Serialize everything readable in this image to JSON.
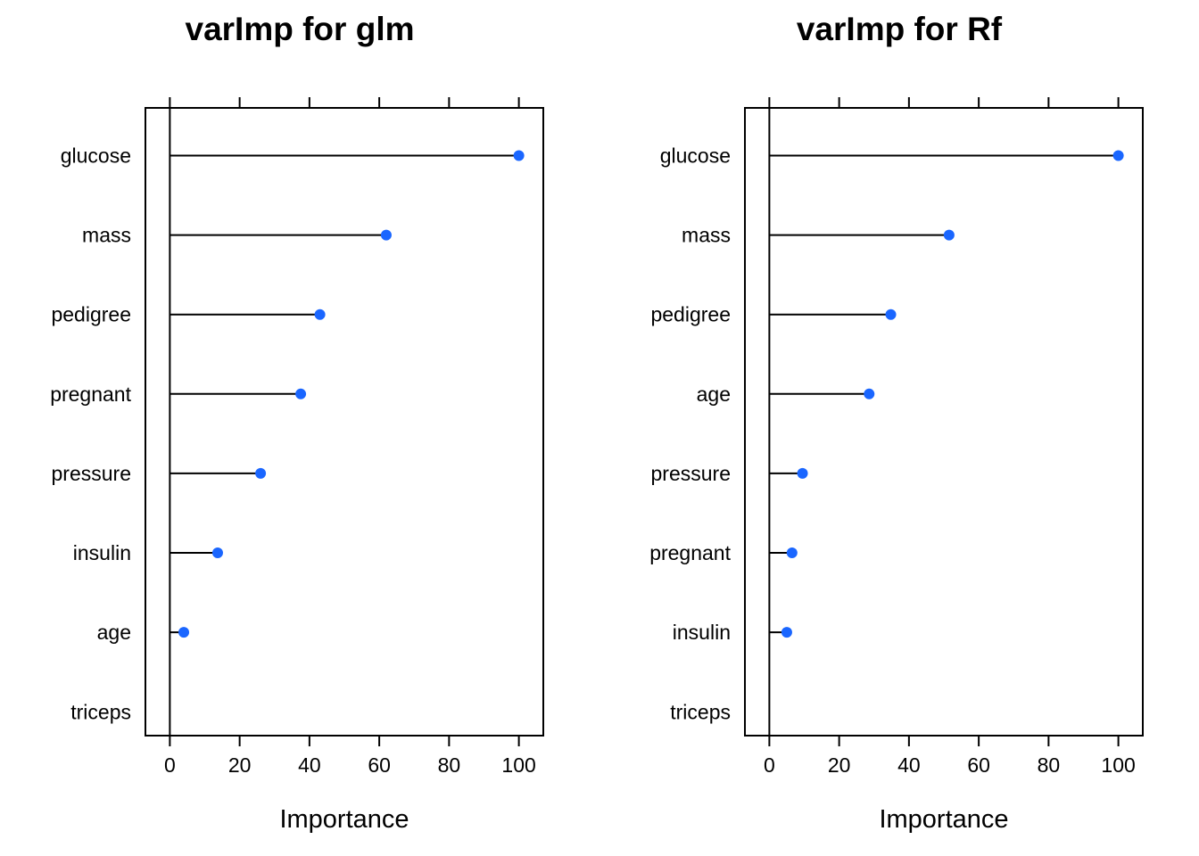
{
  "chart_data": [
    {
      "type": "dotplot",
      "title": "varImp for glm",
      "xlabel": "Importance",
      "xlim": [
        -7,
        107
      ],
      "xticks": [
        0,
        20,
        40,
        60,
        80,
        100
      ],
      "grid": false,
      "point_color": "#1a66ff",
      "categories": [
        "glucose",
        "mass",
        "pedigree",
        "pregnant",
        "pressure",
        "insulin",
        "age",
        "triceps"
      ],
      "values": [
        100,
        62,
        43,
        37.5,
        26,
        13.7,
        4,
        0
      ]
    },
    {
      "type": "dotplot",
      "title": "varImp for Rf",
      "xlabel": "Importance",
      "xlim": [
        -7,
        107
      ],
      "xticks": [
        0,
        20,
        40,
        60,
        80,
        100
      ],
      "grid": false,
      "point_color": "#1a66ff",
      "categories": [
        "glucose",
        "mass",
        "pedigree",
        "age",
        "pressure",
        "pregnant",
        "insulin",
        "triceps"
      ],
      "values": [
        100,
        51.5,
        34.8,
        28.6,
        9.5,
        6.5,
        5,
        0
      ]
    }
  ]
}
